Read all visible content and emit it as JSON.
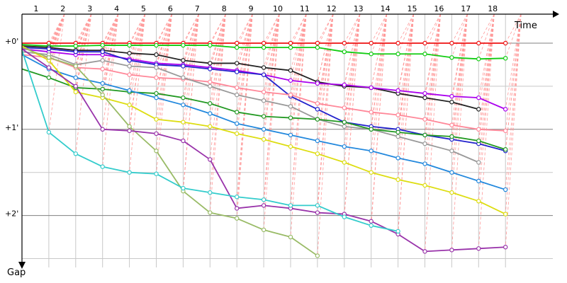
{
  "chart_data": {
    "type": "line",
    "xlabel": "Time",
    "ylabel": "Gap",
    "x_ticks": [
      "1",
      "2",
      "3",
      "4",
      "5",
      "6",
      "7",
      "8",
      "9",
      "10",
      "11",
      "12",
      "13",
      "14",
      "15",
      "16",
      "17",
      "18"
    ],
    "y_ticks": [
      {
        "label": "+0'",
        "value": 0
      },
      {
        "label": "+1'",
        "value": 60
      },
      {
        "label": "+2'",
        "value": 120
      }
    ],
    "xlim": [
      0,
      19.5
    ],
    "ylim": [
      0,
      150
    ],
    "grid": true,
    "colors": {
      "axis": "#000000",
      "grid": "#c8c8c8",
      "grid_major": "#808080",
      "connector": "#ff9999"
    },
    "series": [
      {
        "color": "#ee1111",
        "values": [
          0,
          0,
          0,
          0,
          0,
          0,
          0,
          0,
          0,
          0,
          0,
          0,
          0,
          0,
          0,
          0,
          0,
          0,
          0
        ]
      },
      {
        "color": "#11cc11",
        "values": [
          1,
          2,
          2,
          1.5,
          1.5,
          1.5,
          1.5,
          1.5,
          3,
          3,
          3,
          3,
          6,
          7.5,
          7.5,
          7.5,
          10,
          11,
          10.5
        ]
      },
      {
        "color": "#222222",
        "values": [
          2,
          3,
          5,
          5,
          7,
          8,
          12,
          14,
          14,
          17,
          19,
          27,
          30,
          31,
          35,
          38,
          41,
          46,
          null
        ]
      },
      {
        "color": "#aa00ee",
        "values": [
          4,
          6,
          8,
          8,
          11,
          14,
          15,
          17,
          19,
          22,
          26,
          28,
          29,
          31,
          33,
          35,
          37,
          38,
          46
        ]
      },
      {
        "color": "#2222cc",
        "values": [
          3,
          4,
          6,
          6,
          12,
          15,
          16,
          18,
          20,
          22,
          37,
          46,
          55,
          58,
          60,
          64,
          67,
          70,
          75
        ]
      },
      {
        "color": "#ff8899",
        "values": [
          8,
          10,
          17,
          18,
          22,
          24,
          25,
          27,
          31,
          34,
          36,
          42,
          45,
          48,
          50,
          53,
          57,
          60,
          61
        ]
      },
      {
        "color": "#999999",
        "values": [
          6,
          8,
          15,
          12,
          16,
          17,
          24,
          30,
          36,
          40,
          44,
          53,
          58,
          60,
          65,
          70,
          75,
          83,
          null
        ]
      },
      {
        "color": "#229922",
        "values": [
          18,
          24,
          31,
          32,
          34,
          35,
          38,
          42,
          48,
          51,
          52,
          53,
          55,
          60,
          62,
          64,
          65,
          68,
          74
        ]
      },
      {
        "color": "#2288dd",
        "values": [
          8,
          18,
          24,
          28,
          33,
          38,
          43,
          49,
          56,
          60,
          64,
          68,
          72,
          75,
          80,
          84,
          90,
          96,
          102
        ]
      },
      {
        "color": "#dddd11",
        "values": [
          2,
          12,
          34,
          38,
          43,
          53,
          55,
          58,
          63,
          67,
          72,
          77,
          83,
          90,
          95,
          99,
          104,
          110,
          119
        ]
      },
      {
        "color": "#99bb66",
        "values": [
          3,
          10,
          16,
          36,
          58,
          75,
          103,
          118,
          122,
          130,
          135,
          148,
          null,
          null,
          null,
          null,
          null,
          null,
          null
        ]
      },
      {
        "color": "#9933aa",
        "values": [
          4,
          17,
          30,
          60,
          61,
          63,
          68,
          81,
          115,
          113,
          115,
          118,
          119,
          124,
          133,
          145,
          144,
          143,
          142
        ]
      },
      {
        "color": "#33cccc",
        "values": [
          5,
          62,
          77,
          86,
          90,
          91,
          101,
          104,
          107,
          109,
          113,
          113,
          121,
          127,
          131,
          null,
          null,
          null,
          null
        ]
      }
    ]
  }
}
